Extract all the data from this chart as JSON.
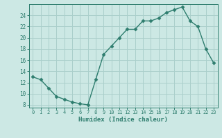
{
  "x": [
    0,
    1,
    2,
    3,
    4,
    5,
    6,
    7,
    8,
    9,
    10,
    11,
    12,
    13,
    14,
    15,
    16,
    17,
    18,
    19,
    20,
    21,
    22,
    23
  ],
  "y": [
    13,
    12.5,
    11,
    9.5,
    9,
    8.5,
    8.2,
    8,
    12.5,
    17,
    18.5,
    20,
    21.5,
    21.5,
    23,
    23,
    23.5,
    24.5,
    25,
    25.5,
    23,
    22,
    18,
    15.5
  ],
  "xlabel": "Humidex (Indice chaleur)",
  "xlim": [
    -0.5,
    23.5
  ],
  "ylim": [
    7.5,
    26
  ],
  "yticks": [
    8,
    10,
    12,
    14,
    16,
    18,
    20,
    22,
    24
  ],
  "xticks": [
    0,
    1,
    2,
    3,
    4,
    5,
    6,
    7,
    8,
    9,
    10,
    11,
    12,
    13,
    14,
    15,
    16,
    17,
    18,
    19,
    20,
    21,
    22,
    23
  ],
  "line_color": "#2e7d6e",
  "marker_color": "#2e7d6e",
  "bg_color": "#cce8e4",
  "grid_color": "#aacfcb",
  "axis_color": "#2e7d6e",
  "text_color": "#2e7d6e",
  "font_family": "monospace"
}
